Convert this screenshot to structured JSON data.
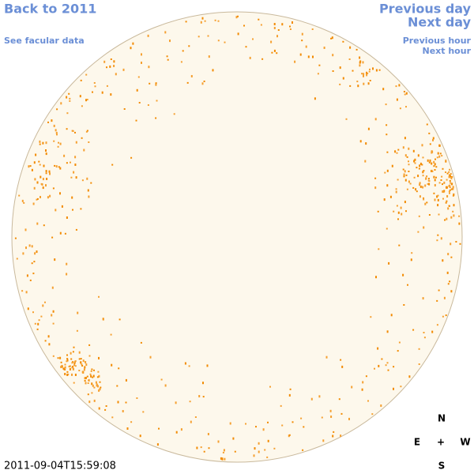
{
  "nav": {
    "back_year": "Back to 2011",
    "facular_data": "See facular data",
    "previous_day": "Previous day",
    "next_day": "Next day",
    "previous_hour": "Previous hour",
    "next_hour": "Next hour"
  },
  "timestamp": "2011-09-04T15:59:08",
  "compass": {
    "north": "N",
    "east": "E",
    "center": "+",
    "west": "W",
    "south": "S"
  }
}
